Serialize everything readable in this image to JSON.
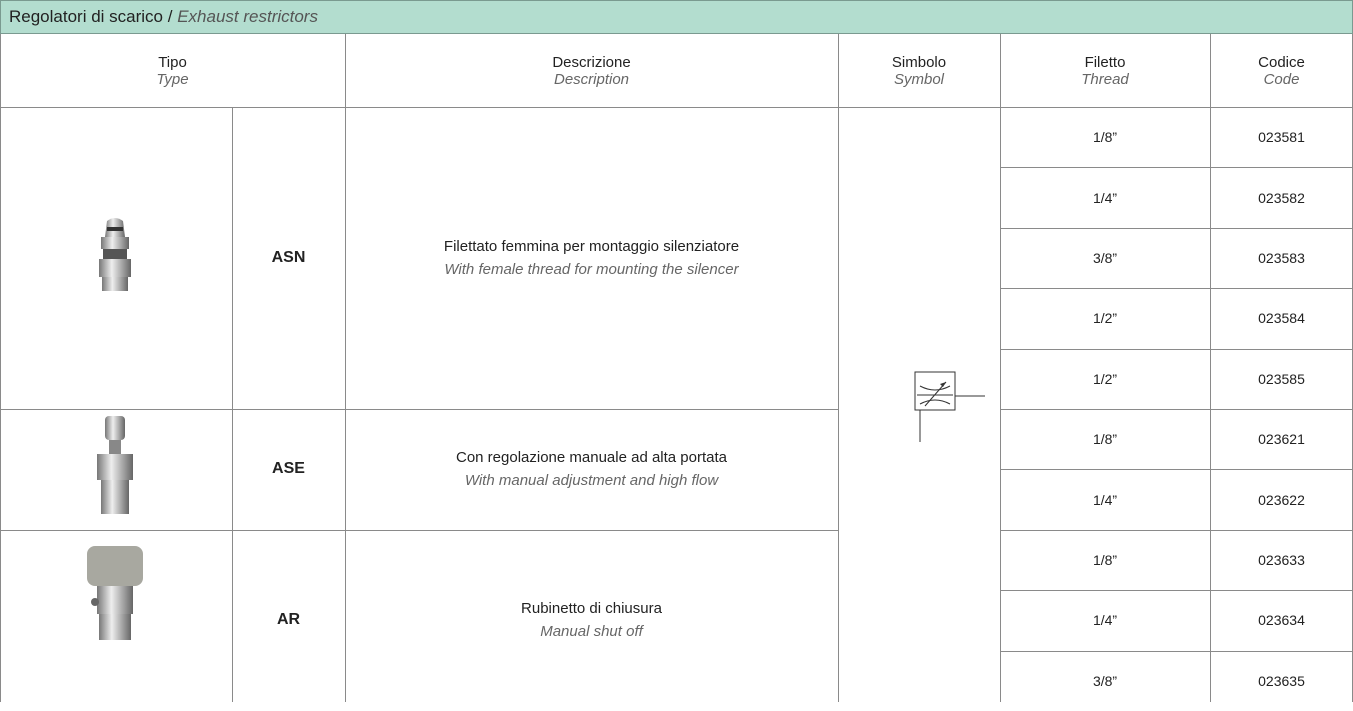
{
  "header": {
    "title": "Regolatori di scarico /",
    "title_en": "Exhaust restrictors"
  },
  "columns": [
    {
      "it": "Tipo",
      "en": "Type"
    },
    {
      "it": "Descrizione",
      "en": "Description"
    },
    {
      "it": "Simbolo",
      "en": "Symbol"
    },
    {
      "it": "Filetto",
      "en": "Thread"
    },
    {
      "it": "Codice",
      "en": "Code"
    }
  ],
  "groups": [
    {
      "type": "ASN",
      "description": "Filettato femmina per montaggio silenziatore",
      "description_en": "With female thread for mounting the silencer",
      "rows": [
        {
          "thread": "1/8”",
          "code": "023581"
        },
        {
          "thread": "1/4”",
          "code": "023582"
        },
        {
          "thread": "3/8”",
          "code": "023583"
        },
        {
          "thread": "1/2”",
          "code": "023584"
        },
        {
          "thread": "1/2”",
          "code": "023585"
        }
      ]
    },
    {
      "type": "ASE",
      "description": "Con regolazione manuale ad alta portata",
      "description_en": "With manual adjustment and high flow",
      "rows": [
        {
          "thread": "1/8”",
          "code": "023621"
        },
        {
          "thread": "1/4”",
          "code": "023622"
        }
      ]
    },
    {
      "type": "AR",
      "description": "Rubinetto di chiusura",
      "description_en": "Manual shut off",
      "rows": [
        {
          "thread": "1/8”",
          "code": "023633"
        },
        {
          "thread": "1/4”",
          "code": "023634"
        },
        {
          "thread": "3/8”",
          "code": "023635"
        }
      ]
    }
  ]
}
